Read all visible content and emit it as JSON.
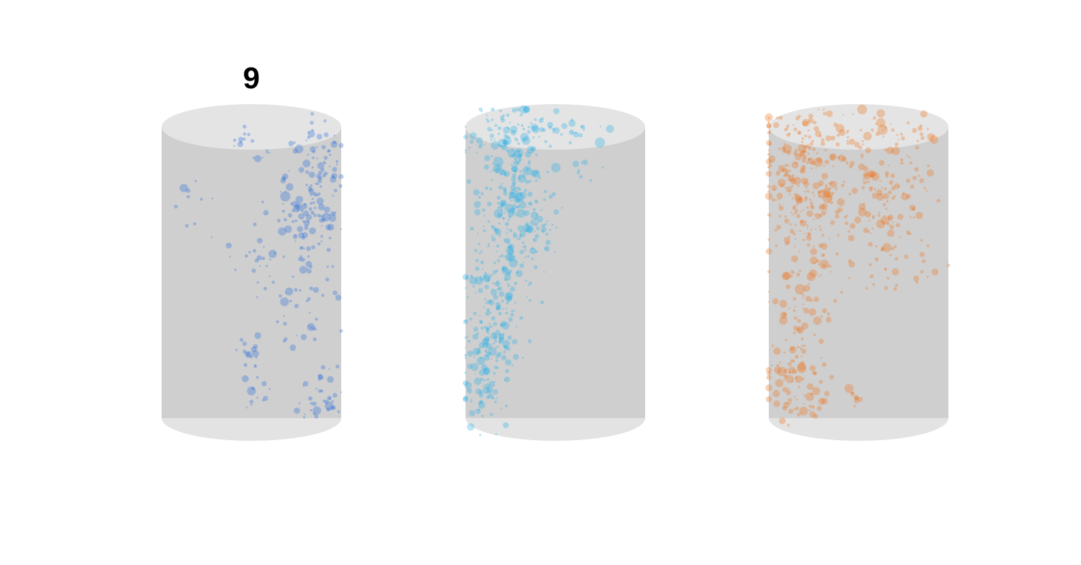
{
  "chart_data": {
    "type": "scatter",
    "title": "",
    "panels": [
      {
        "title": "9",
        "color": "#2E6FDC",
        "shape": "cylinder",
        "clusters": [
          {
            "u": 0.45,
            "v": 0.04,
            "su": 0.04,
            "sv": 0.02,
            "n": 10
          },
          {
            "u": 0.86,
            "v": 0.06,
            "su": 0.07,
            "sv": 0.04,
            "n": 24
          },
          {
            "u": 0.92,
            "v": 0.13,
            "su": 0.06,
            "sv": 0.05,
            "n": 22
          },
          {
            "u": 0.55,
            "v": 0.09,
            "su": 0.04,
            "sv": 0.02,
            "n": 6
          },
          {
            "u": 0.8,
            "v": 0.21,
            "su": 0.08,
            "sv": 0.05,
            "n": 34
          },
          {
            "u": 0.78,
            "v": 0.3,
            "su": 0.1,
            "sv": 0.05,
            "n": 40
          },
          {
            "u": 0.93,
            "v": 0.31,
            "su": 0.05,
            "sv": 0.04,
            "n": 16
          },
          {
            "u": 0.83,
            "v": 0.41,
            "su": 0.06,
            "sv": 0.04,
            "n": 22
          },
          {
            "u": 0.55,
            "v": 0.44,
            "su": 0.08,
            "sv": 0.04,
            "n": 20
          },
          {
            "u": 0.75,
            "v": 0.56,
            "su": 0.12,
            "sv": 0.04,
            "n": 26
          },
          {
            "u": 0.48,
            "v": 0.79,
            "su": 0.04,
            "sv": 0.04,
            "n": 14
          },
          {
            "u": 0.74,
            "v": 0.72,
            "su": 0.1,
            "sv": 0.05,
            "n": 16
          },
          {
            "u": 0.89,
            "v": 0.9,
            "su": 0.06,
            "sv": 0.05,
            "n": 28
          },
          {
            "u": 0.52,
            "v": 0.91,
            "su": 0.06,
            "sv": 0.03,
            "n": 12
          },
          {
            "u": 0.16,
            "v": 0.23,
            "su": 0.05,
            "sv": 0.02,
            "n": 6
          },
          {
            "u": 0.17,
            "v": 0.35,
            "su": 0.04,
            "sv": 0.03,
            "n": 3
          },
          {
            "u": 0.8,
            "v": 0.98,
            "su": 0.05,
            "sv": 0.03,
            "n": 8
          }
        ]
      },
      {
        "title": "",
        "color": "#29B1E6",
        "shape": "cylinder",
        "clusters": [
          {
            "u": 0.22,
            "v": 0.03,
            "su": 0.12,
            "sv": 0.05,
            "n": 70
          },
          {
            "u": 0.52,
            "v": 0.01,
            "su": 0.14,
            "sv": 0.03,
            "n": 30
          },
          {
            "u": 0.25,
            "v": 0.16,
            "su": 0.12,
            "sv": 0.06,
            "n": 80
          },
          {
            "u": 0.28,
            "v": 0.27,
            "su": 0.11,
            "sv": 0.06,
            "n": 80
          },
          {
            "u": 0.27,
            "v": 0.4,
            "su": 0.11,
            "sv": 0.06,
            "n": 80
          },
          {
            "u": 0.19,
            "v": 0.53,
            "su": 0.09,
            "sv": 0.06,
            "n": 70
          },
          {
            "u": 0.15,
            "v": 0.66,
            "su": 0.08,
            "sv": 0.06,
            "n": 60
          },
          {
            "u": 0.14,
            "v": 0.78,
            "su": 0.08,
            "sv": 0.06,
            "n": 60
          },
          {
            "u": 0.11,
            "v": 0.91,
            "su": 0.07,
            "sv": 0.05,
            "n": 45
          },
          {
            "u": 0.66,
            "v": 0.13,
            "su": 0.04,
            "sv": 0.03,
            "n": 8
          }
        ]
      },
      {
        "title": "",
        "color": "#EE7722",
        "shape": "cylinder",
        "clusters": [
          {
            "u": 0.22,
            "v": 0.03,
            "su": 0.16,
            "sv": 0.05,
            "n": 70
          },
          {
            "u": 0.72,
            "v": 0.02,
            "su": 0.12,
            "sv": 0.04,
            "n": 40
          },
          {
            "u": 0.15,
            "v": 0.14,
            "su": 0.1,
            "sv": 0.06,
            "n": 90
          },
          {
            "u": 0.22,
            "v": 0.27,
            "su": 0.12,
            "sv": 0.06,
            "n": 90
          },
          {
            "u": 0.65,
            "v": 0.2,
            "su": 0.14,
            "sv": 0.06,
            "n": 70
          },
          {
            "u": 0.62,
            "v": 0.33,
            "su": 0.12,
            "sv": 0.06,
            "n": 45
          },
          {
            "u": 0.22,
            "v": 0.42,
            "su": 0.1,
            "sv": 0.05,
            "n": 40
          },
          {
            "u": 0.7,
            "v": 0.48,
            "su": 0.12,
            "sv": 0.06,
            "n": 30
          },
          {
            "u": 0.2,
            "v": 0.55,
            "su": 0.1,
            "sv": 0.05,
            "n": 30
          },
          {
            "u": 0.17,
            "v": 0.7,
            "su": 0.09,
            "sv": 0.05,
            "n": 40
          },
          {
            "u": 0.15,
            "v": 0.83,
            "su": 0.08,
            "sv": 0.04,
            "n": 35
          },
          {
            "u": 0.17,
            "v": 0.94,
            "su": 0.09,
            "sv": 0.04,
            "n": 40
          },
          {
            "u": 0.46,
            "v": 0.92,
            "su": 0.04,
            "sv": 0.02,
            "n": 8
          }
        ]
      }
    ],
    "xlabel": "",
    "ylabel": "",
    "grid": false,
    "legend": "none"
  }
}
